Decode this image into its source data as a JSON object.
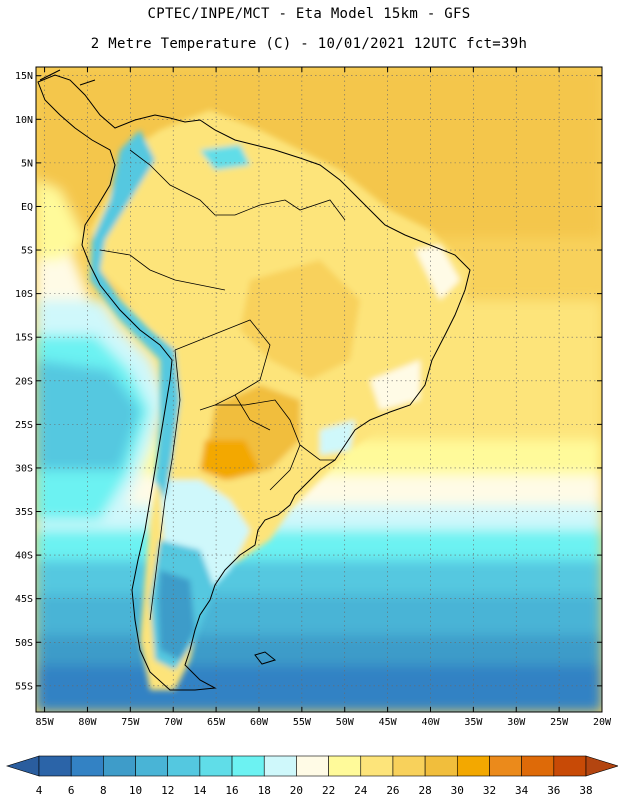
{
  "header": {
    "line1": "CPTEC/INPE/MCT -  Eta Model 15km - GFS",
    "line2": "2 Metre Temperature (C) - 10/01/2021 12UTC fct=39h"
  },
  "map": {
    "lat_range": [
      -58,
      16
    ],
    "lon_range": [
      -86,
      -20
    ],
    "lat_ticks": [
      {
        "value": 15,
        "label": "15N"
      },
      {
        "value": 10,
        "label": "10N"
      },
      {
        "value": 5,
        "label": "5N"
      },
      {
        "value": 0,
        "label": "EQ"
      },
      {
        "value": -5,
        "label": "5S"
      },
      {
        "value": -10,
        "label": "10S"
      },
      {
        "value": -15,
        "label": "15S"
      },
      {
        "value": -20,
        "label": "20S"
      },
      {
        "value": -25,
        "label": "25S"
      },
      {
        "value": -30,
        "label": "30S"
      },
      {
        "value": -35,
        "label": "35S"
      },
      {
        "value": -40,
        "label": "40S"
      },
      {
        "value": -45,
        "label": "45S"
      },
      {
        "value": -50,
        "label": "50S"
      },
      {
        "value": -55,
        "label": "55S"
      }
    ],
    "lon_ticks": [
      {
        "value": -85,
        "label": "85W"
      },
      {
        "value": -80,
        "label": "80W"
      },
      {
        "value": -75,
        "label": "75W"
      },
      {
        "value": -70,
        "label": "70W"
      },
      {
        "value": -65,
        "label": "65W"
      },
      {
        "value": -60,
        "label": "60W"
      },
      {
        "value": -55,
        "label": "55W"
      },
      {
        "value": -50,
        "label": "50W"
      },
      {
        "value": -45,
        "label": "45W"
      },
      {
        "value": -40,
        "label": "40W"
      },
      {
        "value": -35,
        "label": "35W"
      },
      {
        "value": -30,
        "label": "30W"
      },
      {
        "value": -25,
        "label": "25W"
      },
      {
        "value": -20,
        "label": "20W"
      }
    ],
    "grid": true
  },
  "colorbar": {
    "labels": [
      "4",
      "6",
      "8",
      "10",
      "12",
      "14",
      "16",
      "18",
      "20",
      "22",
      "24",
      "26",
      "28",
      "30",
      "32",
      "34",
      "36",
      "38"
    ],
    "colors": [
      "#2b64a8",
      "#3382c4",
      "#3e9cc9",
      "#49b4d6",
      "#54c8e0",
      "#60dde8",
      "#6cf2f2",
      "#cff8fb",
      "#fffbe6",
      "#fffa9a",
      "#fde47a",
      "#f8d15b",
      "#f1be3c",
      "#f3a800",
      "#eb8a1b",
      "#de6a08",
      "#c84a06"
    ],
    "low_color": "#2a5d9e",
    "high_color": "#b34510"
  }
}
